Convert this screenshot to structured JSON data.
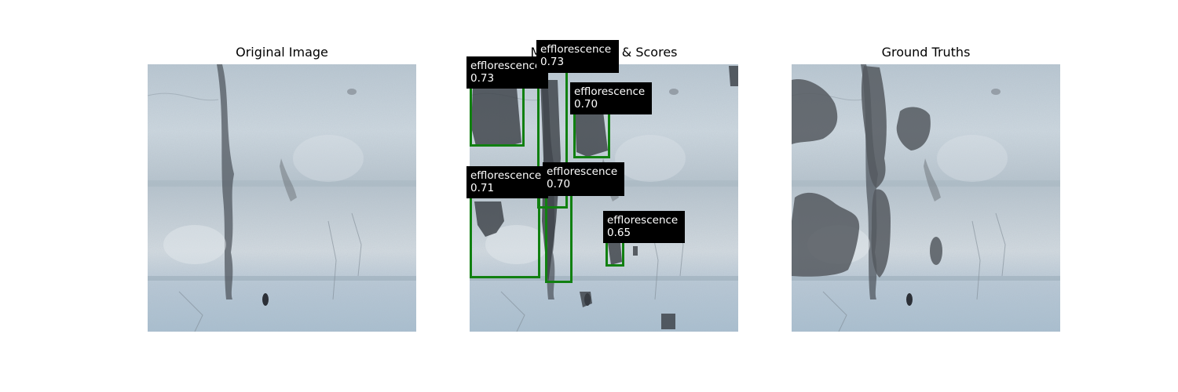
{
  "panels": [
    {
      "title": "Original Image"
    },
    {
      "title": "Masks, Labels & Scores"
    },
    {
      "title": "Ground Truths"
    }
  ],
  "detections": [
    {
      "class": "efflorescence",
      "score": "0.73"
    },
    {
      "class": "efflorescence",
      "score": "0.73"
    },
    {
      "class": "efflorescence",
      "score": "0.70"
    },
    {
      "class": "efflorescence",
      "score": "0.71"
    },
    {
      "class": "efflorescence",
      "score": "0.70"
    },
    {
      "class": "efflorescence",
      "score": "0.65"
    }
  ],
  "colors": {
    "box_outline": "#118011",
    "label_background": "#000000",
    "label_text": "#ffffff",
    "mask_overlay": "#555a60"
  }
}
